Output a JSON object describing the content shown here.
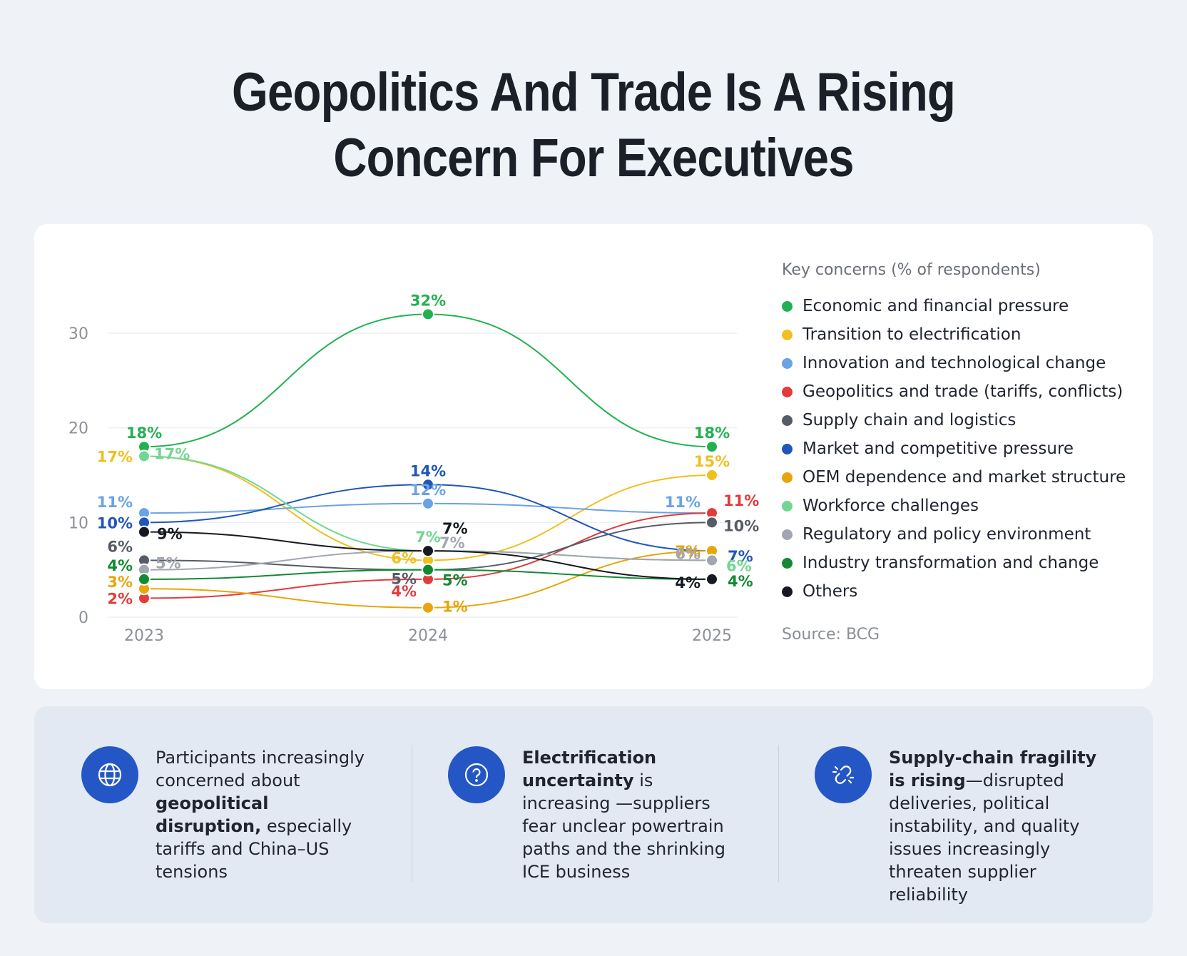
{
  "title": {
    "line1": "Geopolitics And Trade Is A Rising",
    "line2": "Concern For Executives"
  },
  "legend_title": "Key concerns (% of respondents)",
  "source": "Source: BCG",
  "chart_data": {
    "type": "line",
    "x": [
      "2023",
      "2024",
      "2025"
    ],
    "ylim": [
      0,
      30
    ],
    "yticks": [
      0,
      10,
      20,
      30
    ],
    "grid": true,
    "legend_position": "right",
    "series": [
      {
        "name": "Economic and financial pressure",
        "color": "#22b150",
        "values": [
          18,
          32,
          18
        ],
        "labels": [
          "18%",
          "32%",
          "18%"
        ]
      },
      {
        "name": "Transition to electrification",
        "color": "#f0c021",
        "values": [
          17,
          6,
          15
        ],
        "labels": [
          "17%",
          "6%",
          "15%"
        ]
      },
      {
        "name": "Innovation and technological change",
        "color": "#6aa3e6",
        "values": [
          11,
          12,
          11
        ],
        "labels": [
          "11%",
          "12%",
          "11%"
        ]
      },
      {
        "name": "Geopolitics and trade (tariffs, conflicts)",
        "color": "#e03c3c",
        "values": [
          2,
          4,
          11
        ],
        "labels": [
          "2%",
          "4%",
          "11%"
        ]
      },
      {
        "name": "Supply chain and logistics",
        "color": "#565c66",
        "values": [
          6,
          5,
          10
        ],
        "labels": [
          "6%",
          "5%",
          "10%"
        ]
      },
      {
        "name": "Market and competitive pressure",
        "color": "#2056b8",
        "values": [
          10,
          14,
          7
        ],
        "labels": [
          "10%",
          "14%",
          "7%"
        ]
      },
      {
        "name": "OEM dependence and market structure",
        "color": "#e8a50c",
        "values": [
          3,
          1,
          7
        ],
        "labels": [
          "3%",
          "1%",
          "7%"
        ]
      },
      {
        "name": "Workforce challenges",
        "color": "#72d692",
        "values": [
          17,
          7,
          6
        ],
        "labels": [
          "17%",
          "7%",
          "6%"
        ]
      },
      {
        "name": "Regulatory and policy environment",
        "color": "#a2a6b0",
        "values": [
          5,
          7,
          6
        ],
        "labels": [
          "5%",
          "7%",
          "6%"
        ]
      },
      {
        "name": "Industry transformation and change",
        "color": "#128a33",
        "values": [
          4,
          5,
          4
        ],
        "labels": [
          "4%",
          "5%",
          "4%"
        ]
      },
      {
        "name": "Others",
        "color": "#161a20",
        "values": [
          9,
          7,
          4
        ],
        "labels": [
          "9%",
          "7%",
          "4%"
        ]
      }
    ]
  },
  "insights": [
    {
      "icon": "globe-icon",
      "bold": "",
      "pre": "Participants increasingly concerned about ",
      "strong": "geopolitical disruption,",
      "post": " especially tariffs and China–US tensions"
    },
    {
      "icon": "question-icon",
      "strong_lead": "Electrification uncertainty",
      "post": " is increasing —suppliers fear unclear powertrain paths and the shrinking ICE business"
    },
    {
      "icon": "broken-link-icon",
      "strong_lead": "Supply-chain fragility is rising",
      "post": "—disrupted deliveries, political instability, and quality issues increasingly threaten supplier reliability"
    }
  ]
}
